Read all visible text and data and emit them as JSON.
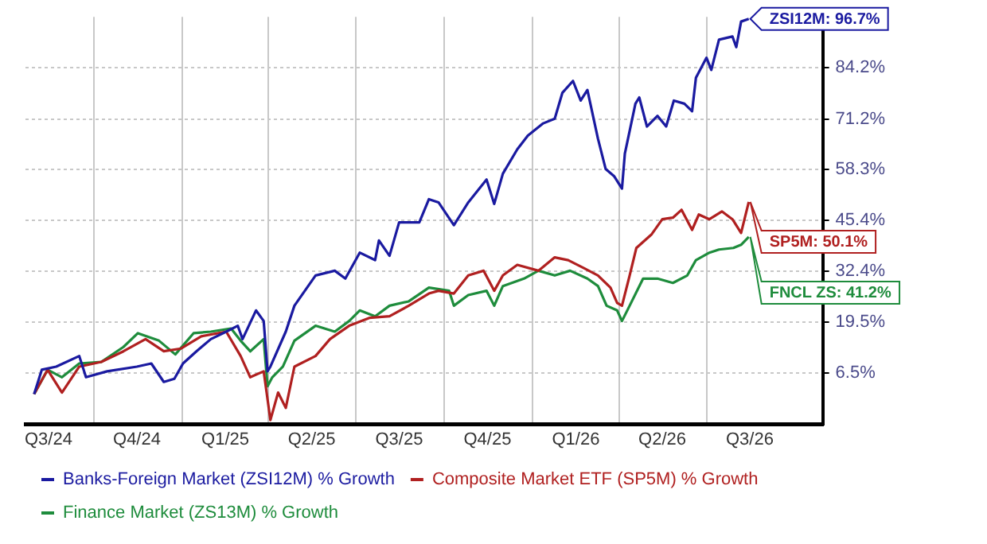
{
  "chart_data": {
    "type": "line",
    "legend": "bottom",
    "grid": true,
    "line_style": "solid",
    "marker": "none",
    "xlim": [
      "2024-07-22",
      "2026-10-30"
    ],
    "xticks": [
      {
        "value": "2024-08-15",
        "label": "Q3/24"
      },
      {
        "value": "2024-10-01",
        "label": null
      },
      {
        "value": "2024-11-15",
        "label": "Q4/24"
      },
      {
        "value": "2025-01-01",
        "label": null
      },
      {
        "value": "2025-02-15",
        "label": "Q1/25"
      },
      {
        "value": "2025-04-01",
        "label": null
      },
      {
        "value": "2025-05-16",
        "label": "Q2/25"
      },
      {
        "value": "2025-07-01",
        "label": null
      },
      {
        "value": "2025-08-15",
        "label": "Q3/25"
      },
      {
        "value": "2025-10-01",
        "label": null
      },
      {
        "value": "2025-11-15",
        "label": "Q4/25"
      },
      {
        "value": "2026-01-01",
        "label": null
      },
      {
        "value": "2026-02-15",
        "label": "Q1/26"
      },
      {
        "value": "2026-04-01",
        "label": null
      },
      {
        "value": "2026-05-16",
        "label": "Q2/26"
      },
      {
        "value": "2026-07-01",
        "label": null
      },
      {
        "value": "2026-08-15",
        "label": "Q3/26"
      }
    ],
    "ylim": [
      -6.5,
      97.2
    ],
    "yticks": [
      {
        "value": 6.5,
        "label": "6.5%"
      },
      {
        "value": 19.5,
        "label": "19.5%"
      },
      {
        "value": 32.4,
        "label": "32.4%"
      },
      {
        "value": 45.4,
        "label": "45.4%"
      },
      {
        "value": 58.3,
        "label": "58.3%"
      },
      {
        "value": 71.2,
        "label": "71.2%"
      },
      {
        "value": 84.2,
        "label": "84.2%"
      }
    ],
    "series": [
      {
        "name": "Banks-Foreign Market (ZSI12M) % Growth",
        "color": "#1a1aa0",
        "x": [
          "2024-07-31",
          "2024-08-08",
          "2024-08-23",
          "2024-09-16",
          "2024-09-23",
          "2024-10-15",
          "2024-11-15",
          "2024-11-30",
          "2024-12-13",
          "2024-12-24",
          "2025-01-02",
          "2025-01-16",
          "2025-01-31",
          "2025-02-16",
          "2025-02-28",
          "2025-03-05",
          "2025-03-19",
          "2025-03-27",
          "2025-03-31",
          "2025-04-03",
          "2025-04-19",
          "2025-04-28",
          "2025-05-20",
          "2025-06-09",
          "2025-06-20",
          "2025-07-05",
          "2025-07-21",
          "2025-07-25",
          "2025-08-05",
          "2025-08-15",
          "2025-09-05",
          "2025-09-15",
          "2025-09-25",
          "2025-10-11",
          "2025-10-26",
          "2025-11-14",
          "2025-11-22",
          "2025-12-01",
          "2025-12-16",
          "2025-12-27",
          "2026-01-12",
          "2026-01-24",
          "2026-02-01",
          "2026-02-12",
          "2026-02-20",
          "2026-02-27",
          "2026-03-10",
          "2026-03-18",
          "2026-03-27",
          "2026-04-04",
          "2026-04-07",
          "2026-04-18",
          "2026-04-22",
          "2026-04-30",
          "2026-05-11",
          "2026-05-20",
          "2026-05-28",
          "2026-06-08",
          "2026-06-16",
          "2026-06-20",
          "2026-07-01",
          "2026-07-06",
          "2026-07-14",
          "2026-07-28",
          "2026-08-01",
          "2026-08-06",
          "2026-08-14"
        ],
        "values": [
          1.2,
          7.4,
          8.2,
          10.9,
          5.5,
          7.0,
          8.2,
          9.0,
          4.3,
          5.1,
          9.0,
          12.1,
          15.2,
          17.1,
          18.6,
          15.2,
          22.5,
          19.8,
          7.0,
          8.2,
          17.1,
          23.7,
          31.4,
          32.6,
          30.6,
          37.2,
          35.3,
          40.3,
          36.4,
          44.9,
          44.9,
          50.8,
          50.0,
          44.2,
          50.0,
          55.8,
          49.6,
          57.3,
          63.5,
          67.0,
          70.1,
          71.3,
          77.9,
          80.9,
          75.9,
          78.6,
          66.2,
          58.5,
          56.6,
          53.5,
          62.4,
          75.1,
          76.7,
          69.3,
          72.0,
          69.3,
          75.9,
          75.1,
          73.2,
          81.7,
          86.8,
          83.7,
          91.4,
          92.2,
          89.5,
          96.0,
          96.7
        ]
      },
      {
        "name": "Composite Market ETF (SP5M) % Growth",
        "color": "#b02020",
        "x": [
          "2024-07-31",
          "2024-08-14",
          "2024-08-29",
          "2024-09-16",
          "2024-10-09",
          "2024-11-01",
          "2024-11-24",
          "2024-12-13",
          "2024-12-31",
          "2025-01-21",
          "2025-02-16",
          "2025-03-03",
          "2025-03-13",
          "2025-03-27",
          "2025-04-03",
          "2025-04-11",
          "2025-04-19",
          "2025-04-28",
          "2025-05-20",
          "2025-06-04",
          "2025-06-24",
          "2025-07-15",
          "2025-08-05",
          "2025-08-25",
          "2025-09-15",
          "2025-09-25",
          "2025-10-11",
          "2025-10-26",
          "2025-11-11",
          "2025-11-22",
          "2025-12-01",
          "2025-12-16",
          "2026-01-07",
          "2026-01-24",
          "2026-02-07",
          "2026-02-23",
          "2026-03-10",
          "2026-03-23",
          "2026-03-30",
          "2026-04-04",
          "2026-04-12",
          "2026-04-19",
          "2026-05-05",
          "2026-05-16",
          "2026-05-27",
          "2026-06-05",
          "2026-06-16",
          "2026-06-23",
          "2026-07-04",
          "2026-07-17",
          "2026-07-28",
          "2026-08-06",
          "2026-08-14"
        ],
        "values": [
          1.2,
          7.4,
          1.6,
          8.2,
          9.4,
          12.1,
          15.2,
          12.1,
          12.8,
          15.9,
          17.1,
          10.9,
          5.5,
          7.0,
          -5.4,
          1.6,
          -2.3,
          8.2,
          10.9,
          15.2,
          18.6,
          20.6,
          21.0,
          23.7,
          26.8,
          27.5,
          26.8,
          31.4,
          32.6,
          27.5,
          31.4,
          34.1,
          32.6,
          36.0,
          35.3,
          33.3,
          31.4,
          28.3,
          24.4,
          23.7,
          31.4,
          38.4,
          41.9,
          45.7,
          46.1,
          48.1,
          43.0,
          46.9,
          45.7,
          47.7,
          45.7,
          42.2,
          50.1
        ]
      },
      {
        "name": "Finance Market (ZS13M) % Growth",
        "color": "#1e8c3c",
        "x": [
          "2024-07-31",
          "2024-08-14",
          "2024-08-29",
          "2024-09-16",
          "2024-10-09",
          "2024-11-01",
          "2024-11-16",
          "2024-12-08",
          "2024-12-25",
          "2025-01-13",
          "2025-01-31",
          "2025-02-21",
          "2025-03-03",
          "2025-03-13",
          "2025-03-27",
          "2025-03-31",
          "2025-04-05",
          "2025-04-16",
          "2025-04-28",
          "2025-05-20",
          "2025-06-09",
          "2025-06-24",
          "2025-07-05",
          "2025-07-21",
          "2025-08-05",
          "2025-08-25",
          "2025-09-15",
          "2025-10-06",
          "2025-10-11",
          "2025-10-26",
          "2025-11-14",
          "2025-11-22",
          "2025-12-01",
          "2025-12-23",
          "2026-01-07",
          "2026-01-24",
          "2026-02-09",
          "2026-02-27",
          "2026-03-10",
          "2026-03-19",
          "2026-03-30",
          "2026-04-04",
          "2026-04-12",
          "2026-04-26",
          "2026-05-11",
          "2026-05-27",
          "2026-06-11",
          "2026-06-20",
          "2026-07-04",
          "2026-07-14",
          "2026-07-29",
          "2026-08-06",
          "2026-08-14"
        ],
        "values": [
          1.2,
          7.4,
          5.5,
          9.0,
          9.4,
          13.2,
          16.7,
          14.8,
          11.3,
          16.7,
          17.1,
          17.9,
          14.8,
          12.1,
          15.2,
          3.2,
          5.5,
          8.2,
          14.8,
          18.6,
          17.1,
          19.8,
          22.5,
          21.0,
          23.7,
          24.8,
          28.3,
          27.5,
          23.7,
          26.4,
          27.5,
          23.7,
          28.7,
          30.6,
          32.6,
          31.4,
          32.6,
          30.6,
          28.7,
          23.7,
          22.5,
          19.8,
          23.7,
          30.6,
          30.6,
          29.5,
          31.4,
          35.3,
          37.2,
          38.0,
          38.4,
          39.2,
          41.2
        ]
      }
    ],
    "annotations": [
      {
        "text": "ZSI12M: 96.7%",
        "x": "2026-08-14",
        "y": 96.7
      },
      {
        "text": "SP5M: 50.1%",
        "x": "2026-08-14",
        "y": 50.1
      },
      {
        "text": "FNCL ZS: 41.2%",
        "x": "2026-08-14",
        "y": 41.2
      }
    ]
  }
}
